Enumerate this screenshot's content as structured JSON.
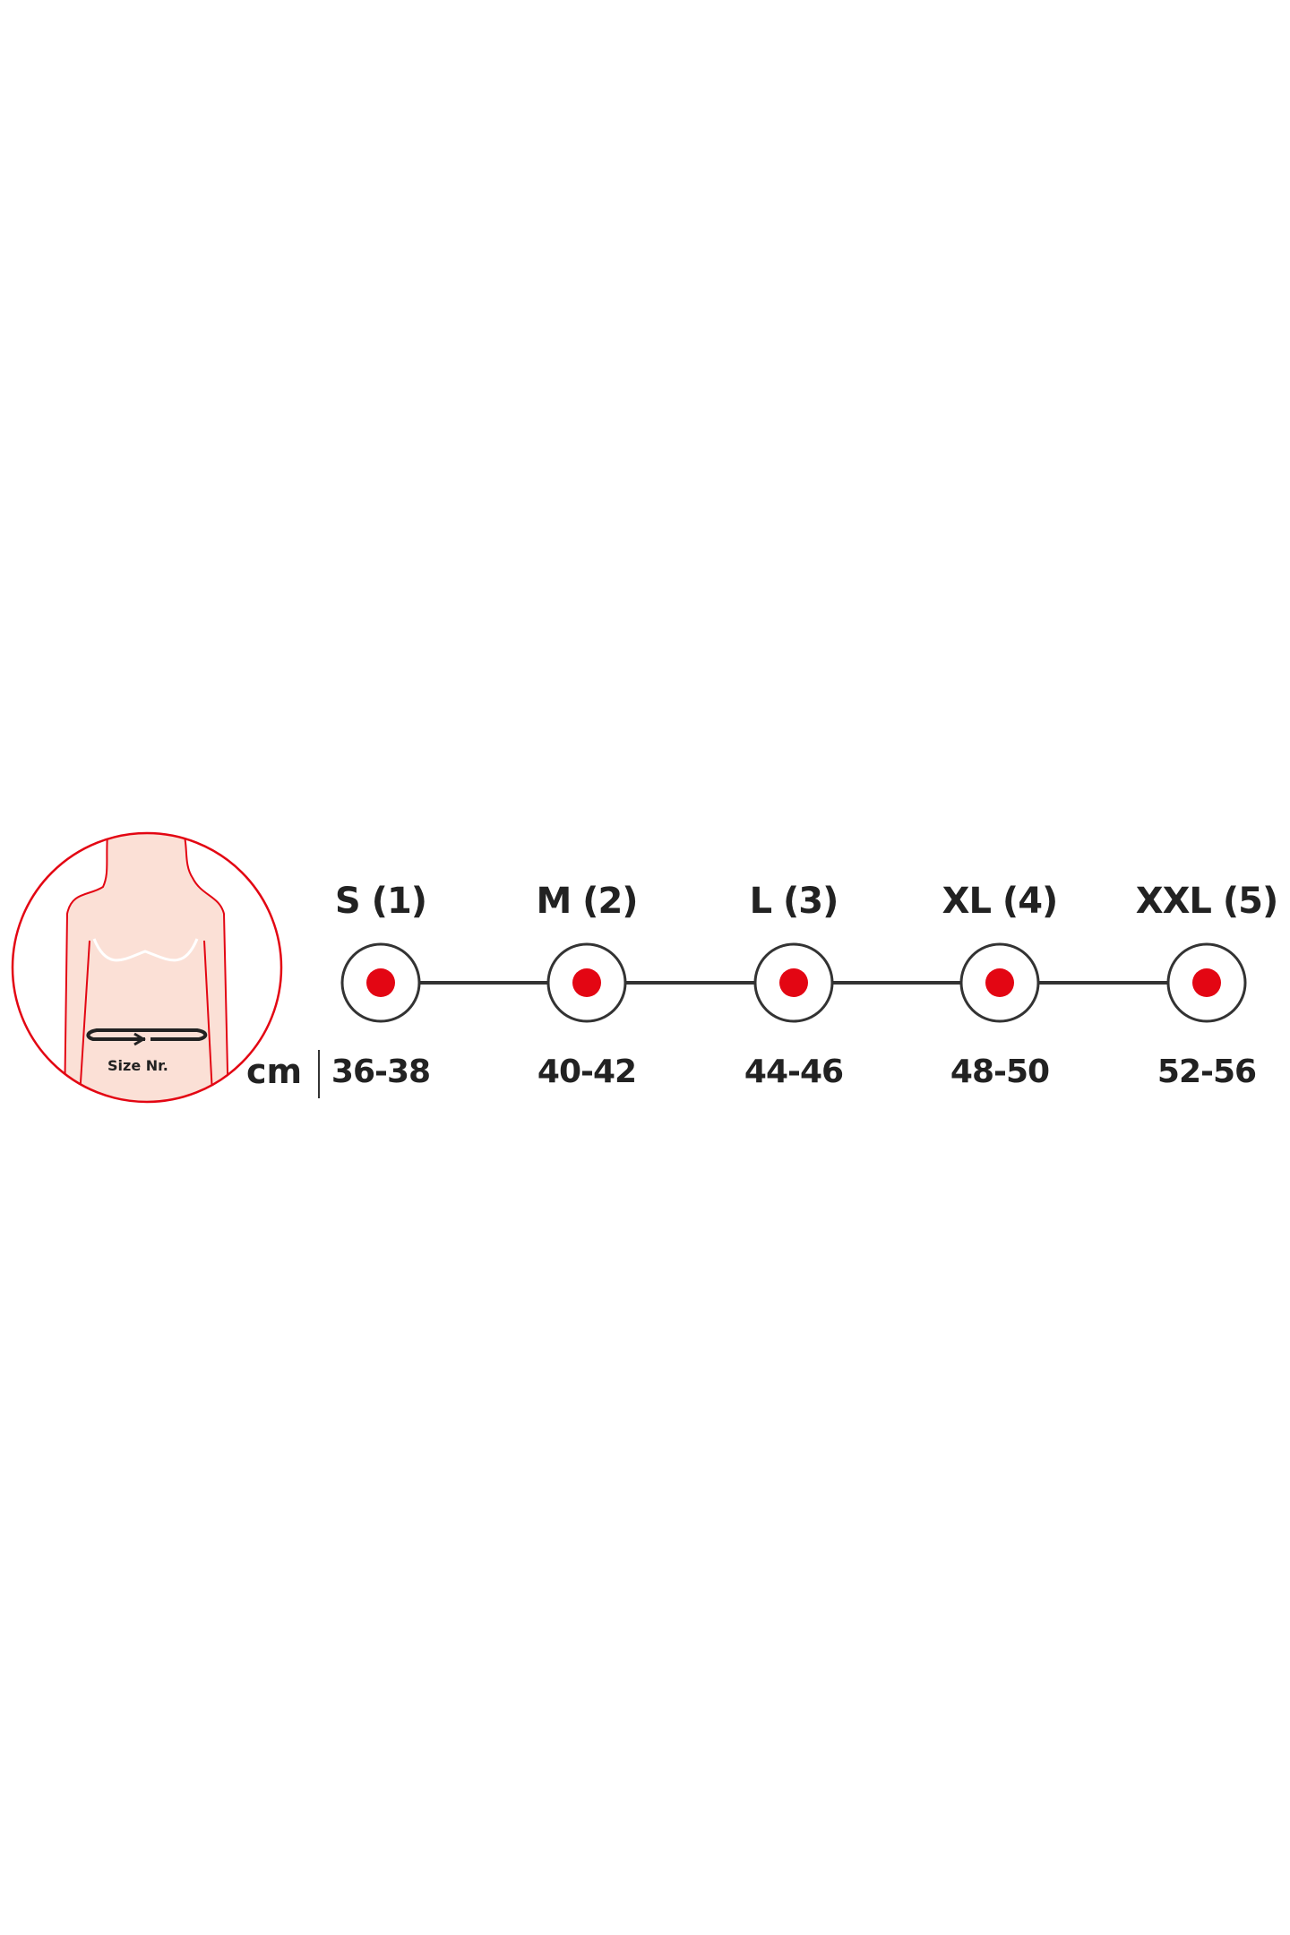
{
  "figure": {
    "caption_on_figure": "Size Nr.",
    "accent_color": "#e30613",
    "skin_color": "#fbe0d6"
  },
  "unit": "cm",
  "sizes": [
    {
      "label": "S (1)",
      "range": "36-38"
    },
    {
      "label": "M (2)",
      "range": "40-42"
    },
    {
      "label": "L (3)",
      "range": "44-46"
    },
    {
      "label": "XL (4)",
      "range": "48-50"
    },
    {
      "label": "XXL (5)",
      "range": "52-56"
    }
  ]
}
